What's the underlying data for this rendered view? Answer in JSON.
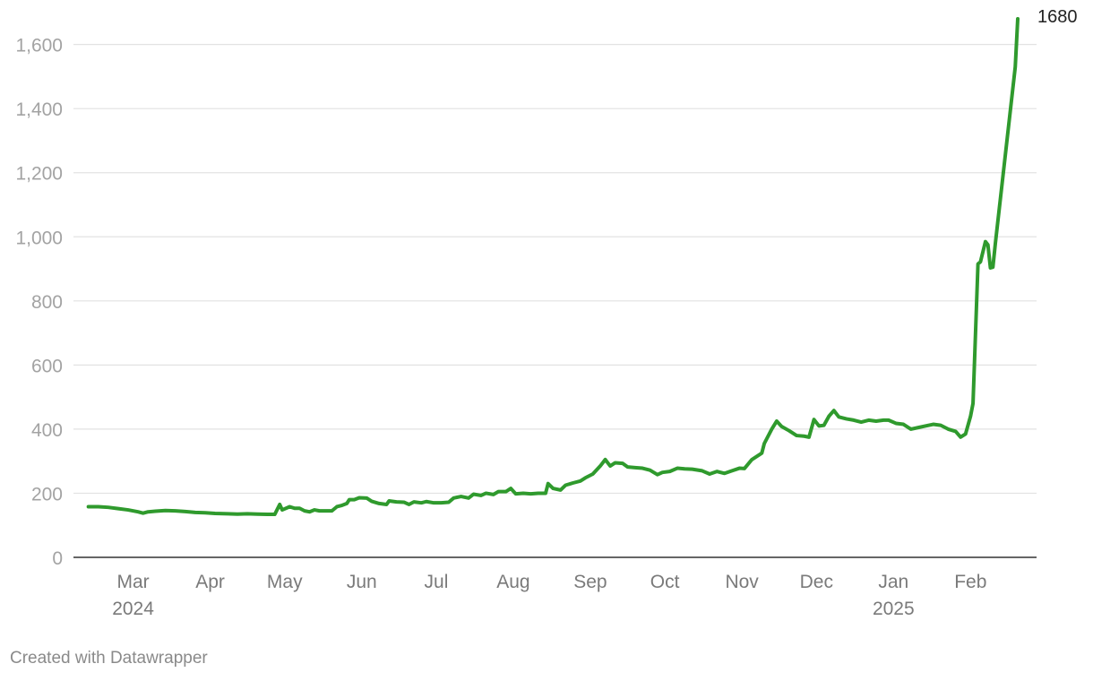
{
  "footer": {
    "credit": "Created with Datawrapper"
  },
  "colors": {
    "series": "#2f9a2d",
    "grid": "#e2e2e2",
    "axis": "#333333"
  },
  "chart_data": {
    "type": "line",
    "title": "",
    "xlabel": "",
    "ylabel": "",
    "ylim": [
      0,
      1680
    ],
    "xlim": [
      "2024-02-06",
      "2025-02-09"
    ],
    "grid": true,
    "legend": "none",
    "y_ticks": [
      {
        "value": 0,
        "label": "0"
      },
      {
        "value": 200,
        "label": "200"
      },
      {
        "value": 400,
        "label": "400"
      },
      {
        "value": 600,
        "label": "600"
      },
      {
        "value": 800,
        "label": "800"
      },
      {
        "value": 1000,
        "label": "1,000"
      },
      {
        "value": 1200,
        "label": "1,200"
      },
      {
        "value": 1400,
        "label": "1,400"
      },
      {
        "value": 1600,
        "label": "1,600"
      }
    ],
    "x_ticks": [
      {
        "date": "2024-03-01",
        "label": "Mar",
        "sublabel": "2024"
      },
      {
        "date": "2024-04-01",
        "label": "Apr",
        "sublabel": ""
      },
      {
        "date": "2024-05-01",
        "label": "May",
        "sublabel": ""
      },
      {
        "date": "2024-06-01",
        "label": "Jun",
        "sublabel": ""
      },
      {
        "date": "2024-07-01",
        "label": "Jul",
        "sublabel": ""
      },
      {
        "date": "2024-08-01",
        "label": "Aug",
        "sublabel": ""
      },
      {
        "date": "2024-09-01",
        "label": "Sep",
        "sublabel": ""
      },
      {
        "date": "2024-10-01",
        "label": "Oct",
        "sublabel": ""
      },
      {
        "date": "2024-11-01",
        "label": "Nov",
        "sublabel": ""
      },
      {
        "date": "2024-12-01",
        "label": "Dec",
        "sublabel": ""
      },
      {
        "date": "2025-01-01",
        "label": "Jan",
        "sublabel": "2025"
      },
      {
        "date": "2025-02-01",
        "label": "Feb",
        "sublabel": ""
      }
    ],
    "end_label": "1680",
    "series": [
      {
        "points": [
          [
            "2024-02-12",
            158
          ],
          [
            "2024-02-16",
            158
          ],
          [
            "2024-02-20",
            156
          ],
          [
            "2024-02-24",
            152
          ],
          [
            "2024-02-28",
            148
          ],
          [
            "2024-03-03",
            142
          ],
          [
            "2024-03-05",
            138
          ],
          [
            "2024-03-07",
            142
          ],
          [
            "2024-03-10",
            144
          ],
          [
            "2024-03-14",
            146
          ],
          [
            "2024-03-18",
            145
          ],
          [
            "2024-03-22",
            143
          ],
          [
            "2024-03-26",
            140
          ],
          [
            "2024-03-30",
            139
          ],
          [
            "2024-04-03",
            137
          ],
          [
            "2024-04-08",
            136
          ],
          [
            "2024-04-12",
            135
          ],
          [
            "2024-04-16",
            136
          ],
          [
            "2024-04-20",
            135
          ],
          [
            "2024-04-24",
            134
          ],
          [
            "2024-04-27",
            134
          ],
          [
            "2024-04-29",
            165
          ],
          [
            "2024-04-30",
            148
          ],
          [
            "2024-05-03",
            158
          ],
          [
            "2024-05-05",
            153
          ],
          [
            "2024-05-07",
            153
          ],
          [
            "2024-05-09",
            145
          ],
          [
            "2024-05-11",
            142
          ],
          [
            "2024-05-13",
            148
          ],
          [
            "2024-05-15",
            145
          ],
          [
            "2024-05-18",
            145
          ],
          [
            "2024-05-20",
            145
          ],
          [
            "2024-05-22",
            158
          ],
          [
            "2024-05-24",
            162
          ],
          [
            "2024-05-26",
            168
          ],
          [
            "2024-05-27",
            180
          ],
          [
            "2024-05-29",
            180
          ],
          [
            "2024-05-31",
            186
          ],
          [
            "2024-06-03",
            185
          ],
          [
            "2024-06-05",
            175
          ],
          [
            "2024-06-08",
            168
          ],
          [
            "2024-06-11",
            165
          ],
          [
            "2024-06-12",
            176
          ],
          [
            "2024-06-15",
            173
          ],
          [
            "2024-06-18",
            172
          ],
          [
            "2024-06-20",
            165
          ],
          [
            "2024-06-22",
            173
          ],
          [
            "2024-06-25",
            170
          ],
          [
            "2024-06-27",
            174
          ],
          [
            "2024-06-30",
            170
          ],
          [
            "2024-07-03",
            170
          ],
          [
            "2024-07-06",
            172
          ],
          [
            "2024-07-08",
            185
          ],
          [
            "2024-07-11",
            190
          ],
          [
            "2024-07-14",
            185
          ],
          [
            "2024-07-16",
            197
          ],
          [
            "2024-07-19",
            193
          ],
          [
            "2024-07-21",
            200
          ],
          [
            "2024-07-24",
            196
          ],
          [
            "2024-07-26",
            205
          ],
          [
            "2024-07-29",
            205
          ],
          [
            "2024-07-31",
            215
          ],
          [
            "2024-08-02",
            198
          ],
          [
            "2024-08-05",
            200
          ],
          [
            "2024-08-08",
            198
          ],
          [
            "2024-08-11",
            200
          ],
          [
            "2024-08-14",
            200
          ],
          [
            "2024-08-15",
            230
          ],
          [
            "2024-08-17",
            215
          ],
          [
            "2024-08-20",
            210
          ],
          [
            "2024-08-22",
            225
          ],
          [
            "2024-08-25",
            232
          ],
          [
            "2024-08-28",
            238
          ],
          [
            "2024-08-30",
            248
          ],
          [
            "2024-09-02",
            260
          ],
          [
            "2024-09-05",
            285
          ],
          [
            "2024-09-07",
            305
          ],
          [
            "2024-09-09",
            285
          ],
          [
            "2024-09-11",
            295
          ],
          [
            "2024-09-14",
            293
          ],
          [
            "2024-09-16",
            282
          ],
          [
            "2024-09-19",
            280
          ],
          [
            "2024-09-22",
            278
          ],
          [
            "2024-09-25",
            272
          ],
          [
            "2024-09-28",
            258
          ],
          [
            "2024-09-30",
            265
          ],
          [
            "2024-10-03",
            268
          ],
          [
            "2024-10-06",
            278
          ],
          [
            "2024-10-09",
            276
          ],
          [
            "2024-10-12",
            275
          ],
          [
            "2024-10-16",
            270
          ],
          [
            "2024-10-19",
            260
          ],
          [
            "2024-10-22",
            268
          ],
          [
            "2024-10-25",
            262
          ],
          [
            "2024-10-28",
            270
          ],
          [
            "2024-10-31",
            278
          ],
          [
            "2024-11-02",
            277
          ],
          [
            "2024-11-05",
            305
          ],
          [
            "2024-11-07",
            315
          ],
          [
            "2024-11-09",
            325
          ],
          [
            "2024-11-10",
            355
          ],
          [
            "2024-11-13",
            400
          ],
          [
            "2024-11-15",
            425
          ],
          [
            "2024-11-17",
            408
          ],
          [
            "2024-11-20",
            395
          ],
          [
            "2024-11-23",
            380
          ],
          [
            "2024-11-26",
            378
          ],
          [
            "2024-11-28",
            375
          ],
          [
            "2024-11-30",
            430
          ],
          [
            "2024-12-02",
            410
          ],
          [
            "2024-12-04",
            412
          ],
          [
            "2024-12-06",
            440
          ],
          [
            "2024-12-08",
            458
          ],
          [
            "2024-12-10",
            438
          ],
          [
            "2024-12-13",
            432
          ],
          [
            "2024-12-16",
            428
          ],
          [
            "2024-12-19",
            422
          ],
          [
            "2024-12-22",
            428
          ],
          [
            "2024-12-25",
            425
          ],
          [
            "2024-12-28",
            428
          ],
          [
            "2024-12-30",
            428
          ],
          [
            "2025-01-02",
            418
          ],
          [
            "2025-01-05",
            415
          ],
          [
            "2025-01-08",
            400
          ],
          [
            "2025-01-11",
            405
          ],
          [
            "2025-01-14",
            410
          ],
          [
            "2025-01-17",
            415
          ],
          [
            "2025-01-20",
            412
          ],
          [
            "2025-01-23",
            400
          ],
          [
            "2025-01-26",
            393
          ],
          [
            "2025-01-28",
            375
          ],
          [
            "2025-01-30",
            385
          ],
          [
            "2025-02-01",
            440
          ],
          [
            "2025-02-02",
            480
          ],
          [
            "2025-02-04",
            915
          ],
          [
            "2025-02-05",
            922
          ],
          [
            "2025-02-07",
            985
          ],
          [
            "2025-02-08",
            975
          ],
          [
            "2025-02-09",
            903
          ],
          [
            "2025-02-10",
            905
          ],
          [
            "2025-02-11",
            980
          ],
          [
            "2025-02-19",
            1530
          ],
          [
            "2025-02-20",
            1680
          ]
        ]
      }
    ]
  }
}
